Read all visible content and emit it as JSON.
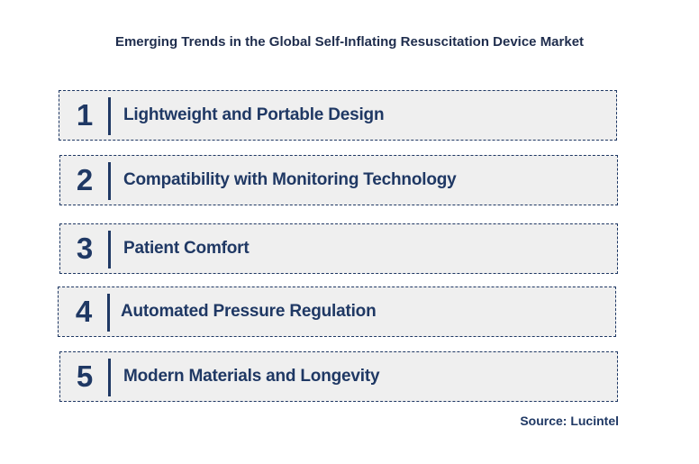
{
  "title": "Emerging Trends in the Global Self-Inflating Resuscitation Device Market",
  "trends": [
    {
      "number": "1",
      "label": "Lightweight and Portable Design"
    },
    {
      "number": "2",
      "label": "Compatibility with Monitoring Technology"
    },
    {
      "number": "3",
      "label": "Patient Comfort"
    },
    {
      "number": "4",
      "label": "Automated Pressure Regulation"
    },
    {
      "number": "5",
      "label": "Modern Materials and Longevity"
    }
  ],
  "source": "Source: Lucintel",
  "colors": {
    "accent": "#1f3864",
    "box_fill": "#efefef",
    "title": "#1f2d4d"
  }
}
